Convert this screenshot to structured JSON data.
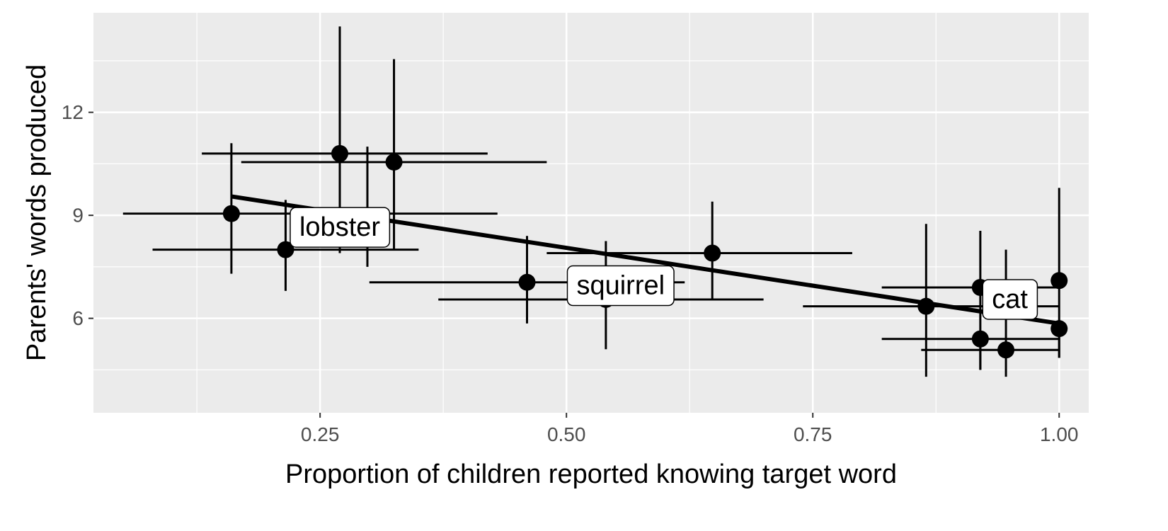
{
  "chart_data": {
    "type": "scatter",
    "title": "",
    "xlabel": "Proportion of children reported knowing target word",
    "ylabel": "Parents' words produced",
    "xlim": [
      0.02,
      1.03
    ],
    "ylim": [
      3.25,
      14.9
    ],
    "x_ticks": [
      0.25,
      0.5,
      0.75,
      1.0
    ],
    "x_tick_labels": [
      "0.25",
      "0.50",
      "0.75",
      "1.00"
    ],
    "x_minor_ticks": [
      0.125,
      0.375,
      0.625,
      0.875
    ],
    "y_ticks": [
      6,
      9,
      12
    ],
    "y_tick_labels": [
      "6",
      "9",
      "12"
    ],
    "y_minor_ticks": [
      4.5,
      7.5,
      10.5,
      13.5
    ],
    "grid": true,
    "panel_background": "#ebebeb",
    "grid_color": "#ffffff",
    "point_color": "#000000",
    "line_color": "#000000",
    "points": [
      {
        "x": 0.16,
        "y": 9.05,
        "x_lo": 0.05,
        "x_hi": 0.43,
        "y_lo": 7.3,
        "y_hi": 11.1
      },
      {
        "x": 0.215,
        "y": 8.0,
        "x_lo": 0.08,
        "x_hi": 0.35,
        "y_lo": 6.8,
        "y_hi": 9.45
      },
      {
        "x": 0.27,
        "y": 10.8,
        "x_lo": 0.13,
        "x_hi": 0.42,
        "y_lo": 7.9,
        "y_hi": 14.5
      },
      {
        "x": 0.298,
        "y": 9.0,
        "x_lo": 0.298,
        "x_hi": 0.298,
        "y_lo": 7.5,
        "y_hi": 11.0
      },
      {
        "x": 0.325,
        "y": 10.55,
        "x_lo": 0.17,
        "x_hi": 0.48,
        "y_lo": 8.0,
        "y_hi": 13.55
      },
      {
        "x": 0.46,
        "y": 7.05,
        "x_lo": 0.3,
        "x_hi": 0.62,
        "y_lo": 5.85,
        "y_hi": 8.4
      },
      {
        "x": 0.54,
        "y": 6.55,
        "x_lo": 0.37,
        "x_hi": 0.7,
        "y_lo": 5.1,
        "y_hi": 8.25
      },
      {
        "x": 0.648,
        "y": 7.9,
        "x_lo": 0.48,
        "x_hi": 0.79,
        "y_lo": 6.55,
        "y_hi": 9.4
      },
      {
        "x": 0.865,
        "y": 6.35,
        "x_lo": 0.74,
        "x_hi": 1.0,
        "y_lo": 4.3,
        "y_hi": 8.75
      },
      {
        "x": 0.92,
        "y": 6.9,
        "x_lo": 0.82,
        "x_hi": 1.0,
        "y_lo": 4.5,
        "y_hi": 8.55
      },
      {
        "x": 0.92,
        "y": 5.4,
        "x_lo": 0.82,
        "x_hi": 1.0,
        "y_lo": 4.5,
        "y_hi": 5.4
      },
      {
        "x": 0.946,
        "y": 5.08,
        "x_lo": 0.86,
        "x_hi": 1.0,
        "y_lo": 4.3,
        "y_hi": 8.0
      },
      {
        "x": 1.0,
        "y": 7.1,
        "x_lo": 1.0,
        "x_hi": 1.0,
        "y_lo": 4.85,
        "y_hi": 9.8
      },
      {
        "x": 1.0,
        "y": 5.7,
        "x_lo": 1.0,
        "x_hi": 1.0,
        "y_lo": 4.85,
        "y_hi": 5.7
      }
    ],
    "trend_line": {
      "x": [
        0.16,
        1.0
      ],
      "y": [
        9.55,
        5.85
      ]
    },
    "word_labels": [
      {
        "text": "lobster",
        "x": 0.27,
        "y": 8.65
      },
      {
        "text": "squirrel",
        "x": 0.555,
        "y": 6.95
      },
      {
        "text": "cat",
        "x": 0.95,
        "y": 6.55
      }
    ]
  }
}
